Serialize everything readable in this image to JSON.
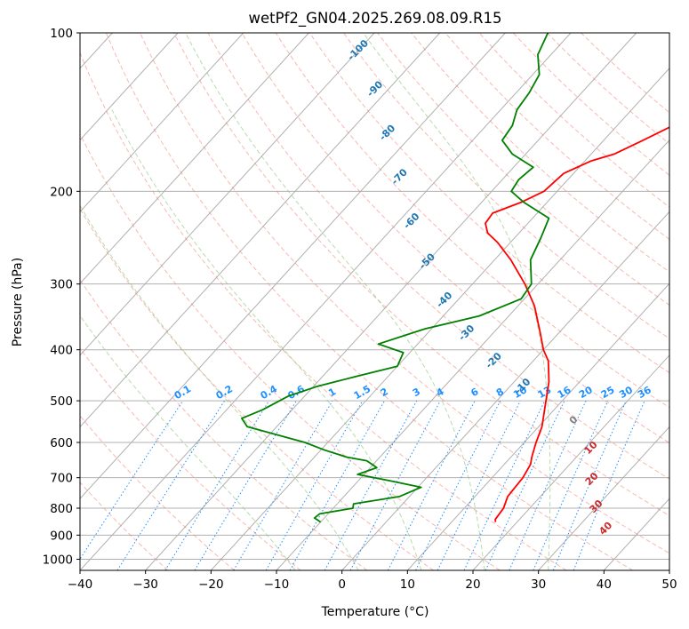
{
  "chart_data": {
    "type": "line",
    "title": "wetPf2_GN04.2025.269.08.09.R15",
    "xlabel": "Temperature (°C)",
    "ylabel": "Pressure (hPa)",
    "xlim": [
      -40,
      50
    ],
    "ylim": [
      1050,
      100
    ],
    "y_scale": "log",
    "x_ticks": [
      -40,
      -30,
      -20,
      -10,
      0,
      10,
      20,
      30,
      40,
      50
    ],
    "x_tick_labels": [
      "−40",
      "−30",
      "−20",
      "−10",
      "0",
      "10",
      "20",
      "30",
      "40",
      "50"
    ],
    "y_ticks": [
      100,
      200,
      300,
      400,
      500,
      600,
      700,
      800,
      900,
      1000
    ],
    "y_tick_labels": [
      "100",
      "200",
      "300",
      "400",
      "500",
      "600",
      "700",
      "800",
      "900",
      "1000"
    ],
    "grid": true,
    "series": [
      {
        "color": "#ff0000",
        "points": [
          [
            850,
            16.7
          ],
          [
            840,
            16.3
          ],
          [
            800,
            16.0
          ],
          [
            760,
            15.0
          ],
          [
            720,
            14.8
          ],
          [
            700,
            14.7
          ],
          [
            660,
            14.0
          ],
          [
            640,
            13.2
          ],
          [
            600,
            11.8
          ],
          [
            560,
            10.5
          ],
          [
            500,
            7.5
          ],
          [
            460,
            5.3
          ],
          [
            420,
            2.3
          ],
          [
            400,
            0.0
          ],
          [
            370,
            -3.0
          ],
          [
            330,
            -7.5
          ],
          [
            300,
            -12.0
          ],
          [
            270,
            -17.5
          ],
          [
            250,
            -22.0
          ],
          [
            240,
            -24.8
          ],
          [
            230,
            -26.5
          ],
          [
            220,
            -26.8
          ],
          [
            210,
            -24.0
          ],
          [
            200,
            -22.0
          ],
          [
            185,
            -21.5
          ],
          [
            175,
            -19.0
          ],
          [
            170,
            -16.5
          ],
          [
            160,
            -14.0
          ],
          [
            150,
            -11.5
          ],
          [
            140,
            -9.5
          ],
          [
            130,
            -7.5
          ],
          [
            120,
            -7.0
          ],
          [
            110,
            -5.0
          ],
          [
            100,
            -3.0
          ]
        ]
      },
      {
        "color": "#008000",
        "points": [
          [
            850,
            -10.0
          ],
          [
            835,
            -11.5
          ],
          [
            820,
            -11.3
          ],
          [
            800,
            -7.0
          ],
          [
            785,
            -7.5
          ],
          [
            760,
            -1.5
          ],
          [
            730,
            0.5
          ],
          [
            710,
            -5.0
          ],
          [
            690,
            -11.0
          ],
          [
            670,
            -9.0
          ],
          [
            650,
            -11.5
          ],
          [
            640,
            -15.0
          ],
          [
            620,
            -19.5
          ],
          [
            600,
            -23.5
          ],
          [
            560,
            -34.5
          ],
          [
            540,
            -36.5
          ],
          [
            520,
            -34.5
          ],
          [
            490,
            -32.5
          ],
          [
            470,
            -29.5
          ],
          [
            450,
            -25.0
          ],
          [
            430,
            -20.0
          ],
          [
            405,
            -21.0
          ],
          [
            390,
            -26.0
          ],
          [
            365,
            -21.0
          ],
          [
            345,
            -14.5
          ],
          [
            320,
            -10.5
          ],
          [
            300,
            -11.0
          ],
          [
            270,
            -14.5
          ],
          [
            245,
            -16.0
          ],
          [
            225,
            -17.5
          ],
          [
            210,
            -23.5
          ],
          [
            200,
            -27.0
          ],
          [
            190,
            -27.5
          ],
          [
            180,
            -27.0
          ],
          [
            170,
            -32.0
          ],
          [
            160,
            -35.5
          ],
          [
            150,
            -36.0
          ],
          [
            140,
            -37.5
          ],
          [
            130,
            -38.0
          ],
          [
            120,
            -39.0
          ],
          [
            110,
            -42.0
          ],
          [
            100,
            -43.5
          ]
        ]
      }
    ],
    "skew_lines": {
      "isotherms": [
        -150,
        -140,
        -130,
        -120,
        -110,
        -100,
        -90,
        -80,
        -70,
        -60,
        -50,
        -40,
        -30,
        -20,
        -10,
        0,
        10,
        20,
        30,
        40,
        50
      ]
    },
    "dry_adiabats": {
      "values": [
        -30,
        -20,
        -10,
        0,
        10,
        20,
        30,
        40,
        50,
        60,
        70,
        80,
        90,
        100,
        110,
        120,
        130,
        140,
        150,
        160,
        170,
        180
      ],
      "labels": [
        "10",
        "20",
        "30",
        "40"
      ]
    },
    "moist_adiabats": {
      "values": [
        -10,
        0,
        10,
        20,
        30
      ],
      "labels": [
        "0"
      ]
    },
    "saturation_isotherms": {
      "labels": [
        "-100",
        "-90",
        "-80",
        "-70",
        "-60",
        "-50",
        "-40",
        "-30",
        "-20",
        "-10"
      ]
    },
    "mixing_ratio": {
      "values": [
        0.1,
        0.2,
        0.4,
        0.6,
        1,
        1.5,
        2,
        3,
        4,
        6,
        8,
        10,
        13,
        16,
        20,
        25,
        30,
        36
      ],
      "labels": [
        "0.1",
        "0.2",
        "0.4",
        "0.6",
        "1",
        "1.5",
        "2",
        "3",
        "4",
        "6",
        "8",
        "10",
        "13",
        "16",
        "20",
        "25",
        "30",
        "36"
      ]
    }
  }
}
